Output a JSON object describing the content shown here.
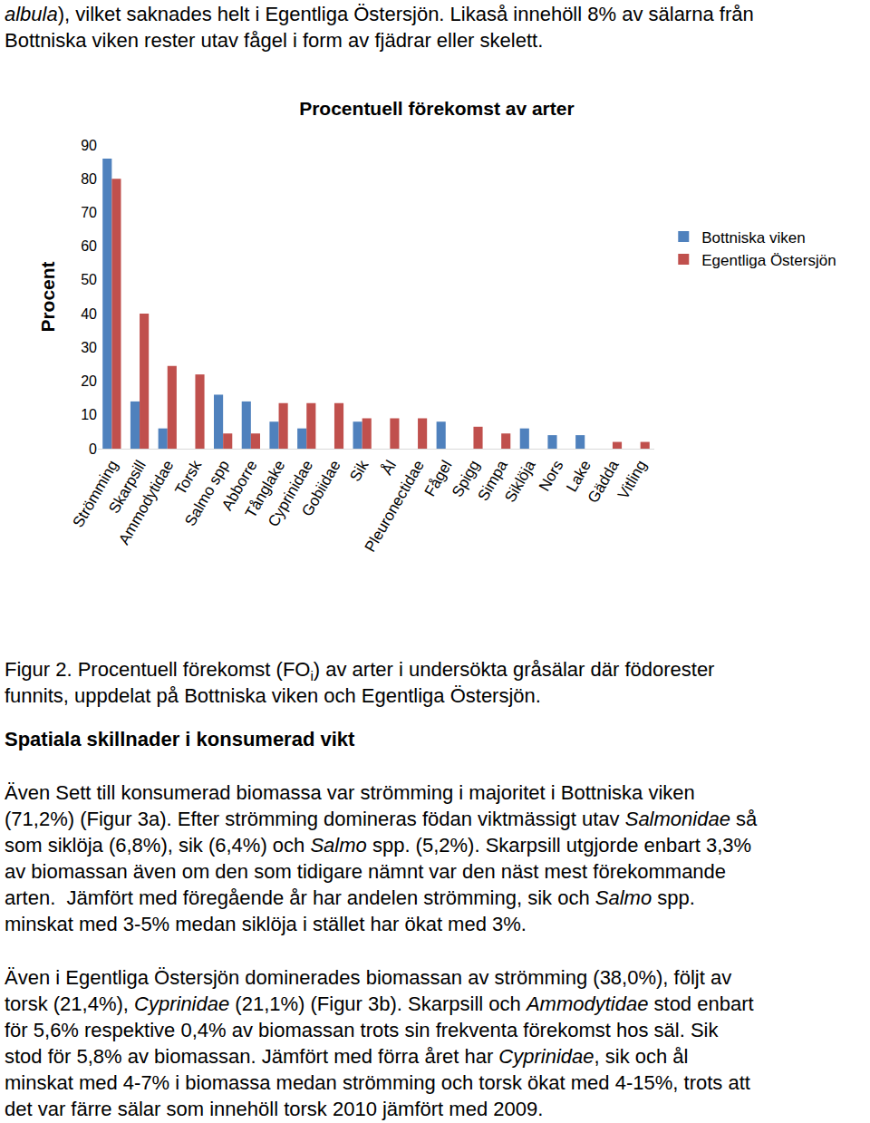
{
  "document": {
    "top_text": [
      [
        {
          "italic": "albula"
        },
        {
          "text": "), vilket saknades helt i Egentliga Östersjön. Likaså innehöll 8% av sälarna från"
        }
      ],
      [
        {
          "text": "Bottniska viken rester utav fågel i form av fjädrar eller skelett."
        }
      ]
    ],
    "caption": [
      [
        {
          "text": "Figur 2. Procentuell förekomst (FO"
        },
        {
          "sub": "i"
        },
        {
          "text": ") av arter i undersökta gråsälar där födorester"
        }
      ],
      [
        {
          "text": "funnits, uppdelat på Bottniska viken och Egentliga Östersjön."
        }
      ]
    ],
    "heading": "Spatiala skillnader i konsumerad vikt",
    "paragraphs": [
      [
        [
          {
            "text": "Även Sett till konsumerad biomassa var strömming i majoritet i Bottniska viken"
          }
        ],
        [
          {
            "text": "(71,2%) (Figur 3a). Efter strömming domineras födan viktmässigt utav "
          },
          {
            "italic": "Salmonidae"
          },
          {
            "text": " så"
          }
        ],
        [
          {
            "text": "som siklöja (6,8%), sik (6,4%) och "
          },
          {
            "italic": "Salmo"
          },
          {
            "text": " spp. (5,2%). Skarpsill utgjorde enbart 3,3%"
          }
        ],
        [
          {
            "text": "av biomassan även om den som tidigare nämnt var den näst mest förekommande"
          }
        ],
        [
          {
            "text": "arten.  Jämfört med föregående år har andelen strömming, sik och "
          },
          {
            "italic": "Salmo"
          },
          {
            "text": " spp."
          }
        ],
        [
          {
            "text": "minskat med 3-5% medan siklöja i stället har ökat med 3%."
          }
        ]
      ],
      [
        [
          {
            "text": "Även i Egentliga Östersjön dominerades biomassan av strömming (38,0%), följt av"
          }
        ],
        [
          {
            "text": "torsk (21,4%), "
          },
          {
            "italic": "Cyprinidae"
          },
          {
            "text": " (21,1%) (Figur 3b). Skarpsill och "
          },
          {
            "italic": "Ammodytidae"
          },
          {
            "text": " stod enbart"
          }
        ],
        [
          {
            "text": "för 5,6% respektive 0,4% av biomassan trots sin frekventa förekomst hos säl. Sik"
          }
        ],
        [
          {
            "text": "stod för 5,8% av biomassan. Jämfört med förra året har "
          },
          {
            "italic": "Cyprinidae"
          },
          {
            "text": ", sik och ål"
          }
        ],
        [
          {
            "text": "minskat med 4-7% i biomassa medan strömming och torsk ökat med 4-15%, trots att"
          }
        ],
        [
          {
            "text": "det var färre sälar som innehöll torsk 2010 jämfört med 2009."
          }
        ]
      ]
    ]
  },
  "chart_data": {
    "type": "bar",
    "title": "Procentuell förekomst av arter",
    "y_label": "Procent",
    "categories": [
      "Strömming",
      "Skarpsill",
      "Ammodytidae",
      "Torsk",
      "Salmo spp",
      "Abborre",
      "Tånglake",
      "Cyprinidae",
      "Gobiidae",
      "Sik",
      "Ål",
      "Pleuronectidae",
      "Fågel",
      "Spigg",
      "Simpa",
      "Siklöja",
      "Nors",
      "Lake",
      "Gädda",
      "Vitling"
    ],
    "series": [
      {
        "name": "Bottniska viken",
        "color": "#4f81bd",
        "values": [
          86,
          14,
          6,
          0,
          16,
          14,
          8,
          6,
          0,
          8,
          0,
          0,
          8,
          0,
          0,
          6,
          4,
          4,
          0,
          0
        ]
      },
      {
        "name": "Egentliga Östersjön",
        "color": "#c0504d",
        "values": [
          80,
          40,
          24.5,
          22,
          4.5,
          4.5,
          13.5,
          13.5,
          13.5,
          9,
          9,
          9,
          0,
          6.5,
          4.5,
          0,
          0,
          0,
          2,
          2
        ]
      }
    ],
    "ylim": [
      0,
      90
    ],
    "yticks": [
      0,
      10,
      20,
      30,
      40,
      50,
      60,
      70,
      80,
      90
    ],
    "grid": false,
    "legend": "right"
  }
}
